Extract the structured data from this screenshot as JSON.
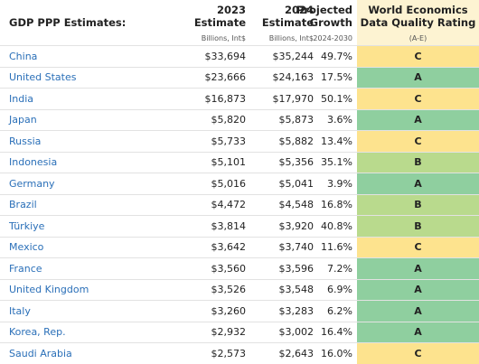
{
  "header": {
    "title": "GDP PPP Estimates:",
    "columns": [
      {
        "lines": [
          "2023",
          "Estimate"
        ],
        "sub": "Billions, Int$"
      },
      {
        "lines": [
          "2024",
          "Estimate"
        ],
        "sub": "Billions, Int$"
      },
      {
        "lines": [
          "Projected",
          "Growth"
        ],
        "sub": "2024-2030"
      },
      {
        "lines": [
          "World Economics",
          "Data Quality Rating"
        ],
        "sub": "(A-E)"
      }
    ]
  },
  "rating_colors": {
    "A": "#8fcf9f",
    "B": "#b9da8d",
    "C": "#fde38e"
  },
  "table": {
    "rows": [
      [
        "China",
        "$33,694",
        "$35,244",
        "49.7%",
        "C"
      ],
      [
        "United States",
        "$23,666",
        "$24,163",
        "17.5%",
        "A"
      ],
      [
        "India",
        "$16,873",
        "$17,970",
        "50.1%",
        "C"
      ],
      [
        "Japan",
        "$5,820",
        "$5,873",
        "3.6%",
        "A"
      ],
      [
        "Russia",
        "$5,733",
        "$5,882",
        "13.4%",
        "C"
      ],
      [
        "Indonesia",
        "$5,101",
        "$5,356",
        "35.1%",
        "B"
      ],
      [
        "Germany",
        "$5,016",
        "$5,041",
        "3.9%",
        "A"
      ],
      [
        "Brazil",
        "$4,472",
        "$4,548",
        "16.8%",
        "B"
      ],
      [
        "Türkiye",
        "$3,814",
        "$3,920",
        "40.8%",
        "B"
      ],
      [
        "Mexico",
        "$3,642",
        "$3,740",
        "11.6%",
        "C"
      ],
      [
        "France",
        "$3,560",
        "$3,596",
        "7.2%",
        "A"
      ],
      [
        "United Kingdom",
        "$3,526",
        "$3,548",
        "6.9%",
        "A"
      ],
      [
        "Italy",
        "$3,260",
        "$3,283",
        "6.2%",
        "A"
      ],
      [
        "Korea, Rep.",
        "$2,932",
        "$3,002",
        "16.4%",
        "A"
      ],
      [
        "Saudi Arabia",
        "$2,573",
        "$2,643",
        "16.0%",
        "C"
      ]
    ]
  }
}
